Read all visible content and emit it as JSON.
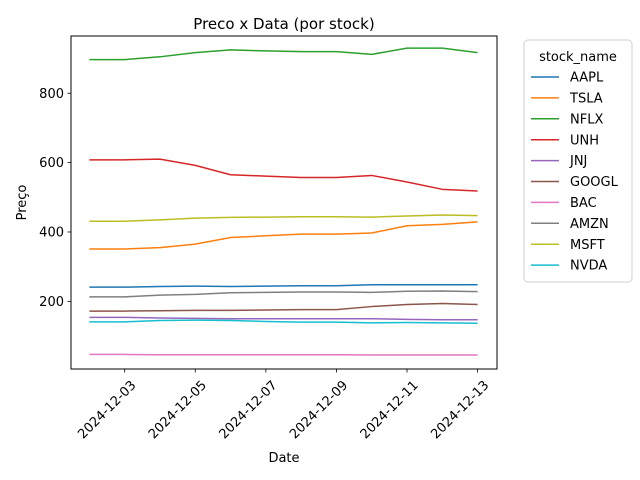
{
  "chart_data": {
    "type": "line",
    "title": "Preco x Data (por stock)",
    "xlabel": "Date",
    "ylabel": "Preço",
    "x_tick_labels": [
      "2024-12-03",
      "2024-12-05",
      "2024-12-07",
      "2024-12-09",
      "2024-12-11",
      "2024-12-13"
    ],
    "y_ticks": [
      200,
      400,
      600,
      800
    ],
    "xlim": [
      "2024-11-30",
      "2024-12-13"
    ],
    "ylim": [
      5,
      965
    ],
    "grid": false,
    "legend": {
      "title": "stock_name",
      "placement": "outside-right"
    },
    "x": [
      "2024-12-02",
      "2024-12-03",
      "2024-12-04",
      "2024-12-05",
      "2024-12-06",
      "2024-12-07",
      "2024-12-08",
      "2024-12-09",
      "2024-12-10",
      "2024-12-11",
      "2024-12-12",
      "2024-12-13"
    ],
    "series": [
      {
        "name": "AAPL",
        "color": "#1f77b4",
        "values": [
          241,
          241,
          243,
          244,
          243,
          244,
          245,
          245,
          248,
          248,
          248,
          248
        ]
      },
      {
        "name": "TSLA",
        "color": "#ff7f0e",
        "values": [
          351,
          351,
          355,
          365,
          384,
          389,
          394,
          394,
          397,
          418,
          422,
          429
        ]
      },
      {
        "name": "NFLX",
        "color": "#2ca02c",
        "values": [
          897,
          897,
          905,
          917,
          925,
          922,
          920,
          920,
          912,
          930,
          930,
          917
        ]
      },
      {
        "name": "UNH",
        "color": "#d62728",
        "values": [
          608,
          608,
          610,
          592,
          565,
          561,
          557,
          557,
          563,
          544,
          523,
          518
        ]
      },
      {
        "name": "JNJ",
        "color": "#9467bd",
        "values": [
          154,
          154,
          152,
          151,
          150,
          150,
          150,
          150,
          150,
          148,
          147,
          147
        ]
      },
      {
        "name": "GOOGL",
        "color": "#8c564b",
        "values": [
          172,
          172,
          173,
          174,
          174,
          175,
          176,
          176,
          185,
          191,
          194,
          191
        ]
      },
      {
        "name": "BAC",
        "color": "#e377c2",
        "values": [
          47,
          47,
          46,
          46,
          46,
          46,
          46,
          46,
          45.5,
          45.5,
          45.5,
          45.5
        ]
      },
      {
        "name": "AMZN",
        "color": "#7f7f7f",
        "values": [
          213,
          213,
          218,
          220,
          225,
          226,
          227,
          227,
          226,
          229,
          230,
          228
        ]
      },
      {
        "name": "MSFT",
        "color": "#bcbd22",
        "values": [
          431,
          431,
          435,
          440,
          442,
          443,
          444,
          444,
          443,
          446,
          449,
          447
        ]
      },
      {
        "name": "NVDA",
        "color": "#17becf",
        "values": [
          141,
          141,
          145,
          146,
          145,
          142,
          140,
          140,
          138,
          139,
          138,
          137
        ]
      }
    ]
  }
}
